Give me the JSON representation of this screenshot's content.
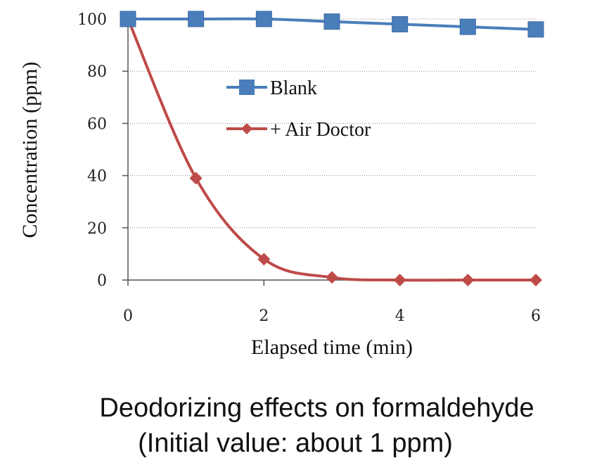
{
  "chart_data": {
    "type": "line",
    "title": "Deodorizing effects on formaldehyde",
    "subtitle": "(Initial value: about 1 ppm)",
    "xlabel": "Elapsed time (min)",
    "ylabel": "Concentration (ppm)",
    "x": [
      0,
      1,
      2,
      3,
      4,
      5,
      6
    ],
    "xlim": [
      0,
      6
    ],
    "ylim": [
      0,
      100
    ],
    "xticks": [
      "0",
      "2",
      "4",
      "6"
    ],
    "yticks": [
      "0",
      "20",
      "40",
      "60",
      "80",
      "100"
    ],
    "grid": true,
    "legend_position": "center",
    "series": [
      {
        "name": "Blank",
        "marker": "square",
        "color": "#4a7ebb",
        "values": [
          100,
          100,
          100,
          99,
          98,
          97,
          96
        ]
      },
      {
        "name": "+ Air Doctor",
        "marker": "diamond",
        "color": "#be4b48",
        "values": [
          100,
          39,
          8,
          1,
          0,
          0,
          0
        ]
      }
    ]
  }
}
